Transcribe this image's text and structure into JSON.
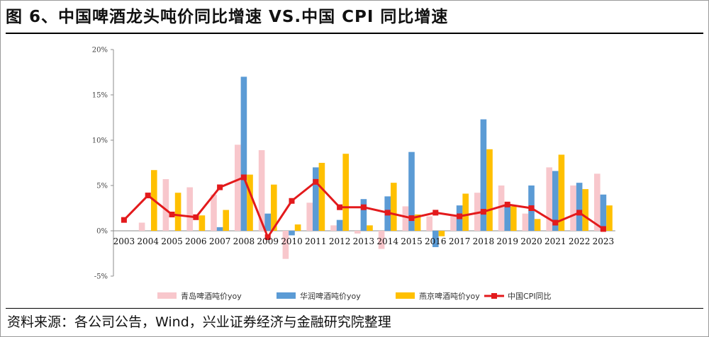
{
  "header": {
    "title": "图 6、中国啤酒龙头吨价同比增速 VS.中国 CPI 同比增速"
  },
  "footer": {
    "source": "资料来源：各公司公告，Wind，兴业证券经济与金融研究院整理"
  },
  "chart_data": {
    "type": "bar",
    "title": "图 6、中国啤酒龙头吨价同比增速 VS.中国 CPI 同比增速",
    "xlabel": "",
    "ylabel": "",
    "ylim": [
      -5,
      20
    ],
    "yticks": [
      20,
      15,
      10,
      5,
      0,
      -5
    ],
    "ytick_labels": [
      "20%",
      "15%",
      "10%",
      "5%",
      "0%",
      "-5%"
    ],
    "grid": false,
    "legend_position": "bottom",
    "categories": [
      "2003",
      "2004",
      "2005",
      "2006",
      "2007",
      "2008",
      "2009",
      "2010",
      "2011",
      "2012",
      "2013",
      "2014",
      "2015",
      "2016",
      "2017",
      "2018",
      "2019",
      "2020",
      "2021",
      "2022",
      "2023"
    ],
    "series": [
      {
        "name": "青岛啤酒吨价yoy",
        "type": "bar",
        "color": "#F8C7CC",
        "values": [
          null,
          0.9,
          5.7,
          4.8,
          4.0,
          9.5,
          8.9,
          -3.1,
          3.1,
          0.6,
          -0.3,
          -2.0,
          2.7,
          1.6,
          1.7,
          4.2,
          5.0,
          1.9,
          7.0,
          5.0,
          6.3
        ]
      },
      {
        "name": "华润啤酒吨价yoy",
        "type": "bar",
        "color": "#5B9BD5",
        "values": [
          null,
          null,
          null,
          null,
          0.4,
          17.0,
          1.9,
          -0.5,
          7.0,
          1.2,
          3.5,
          3.8,
          8.7,
          -1.8,
          2.8,
          12.3,
          2.9,
          5.0,
          6.6,
          5.3,
          4.0
        ]
      },
      {
        "name": "燕京啤酒吨价yoy",
        "type": "bar",
        "color": "#FFC000",
        "values": [
          null,
          6.7,
          4.2,
          1.7,
          2.3,
          6.2,
          5.1,
          0.7,
          7.5,
          8.5,
          0.6,
          5.3,
          1.8,
          -0.6,
          4.1,
          9.0,
          2.7,
          1.3,
          8.4,
          4.6,
          2.8
        ]
      },
      {
        "name": "中国CPI同比",
        "type": "line",
        "color": "#E31A1C",
        "values": [
          1.2,
          3.9,
          1.8,
          1.5,
          4.8,
          5.9,
          -0.7,
          3.3,
          5.4,
          2.6,
          2.6,
          2.0,
          1.4,
          2.0,
          1.6,
          2.1,
          2.9,
          2.5,
          0.9,
          2.0,
          0.2
        ]
      }
    ]
  }
}
